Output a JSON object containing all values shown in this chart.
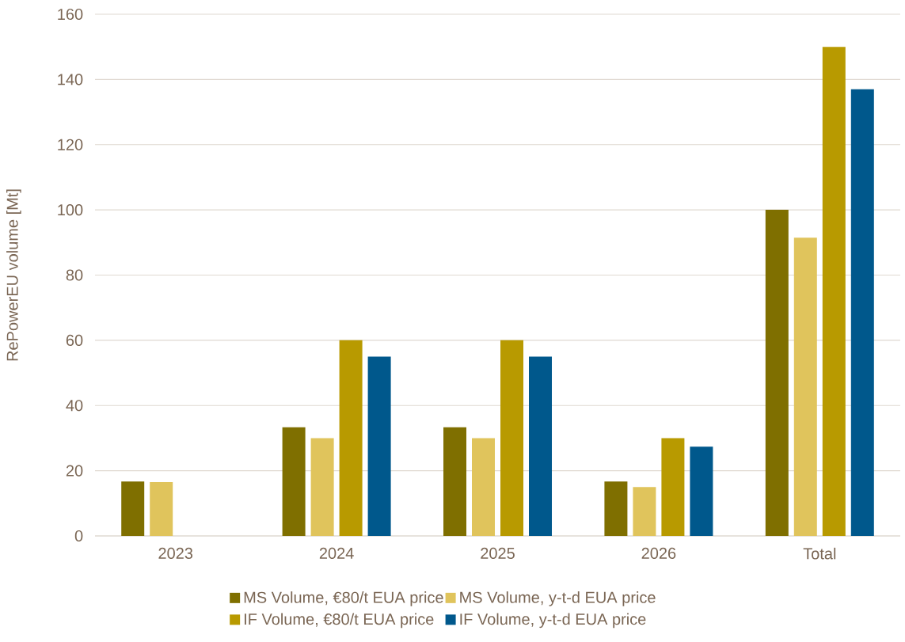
{
  "chart_data": {
    "type": "bar",
    "ylabel": "RePowerEU volume [Mt]",
    "categories": [
      "2023",
      "2024",
      "2025",
      "2026",
      "Total"
    ],
    "series": [
      {
        "name": "MS Volume, €80/t EUA price",
        "color": "#7f6f00",
        "values": [
          16.7,
          33.3,
          33.3,
          16.7,
          100
        ]
      },
      {
        "name": "MS Volume, y-t-d EUA price",
        "color": "#e0c45c",
        "values": [
          16.5,
          30,
          30,
          15,
          91.5
        ]
      },
      {
        "name": "IF Volume, €80/t EUA price",
        "color": "#b89a00",
        "values": [
          null,
          60,
          60,
          30,
          150
        ]
      },
      {
        "name": "IF Volume, y-t-d EUA price",
        "color": "#00588c",
        "values": [
          null,
          55,
          55,
          27.4,
          137
        ]
      }
    ],
    "ylim": [
      0,
      160
    ],
    "yticks": [
      0,
      20,
      40,
      60,
      80,
      100,
      120,
      140,
      160
    ],
    "grid": "y",
    "legend": "bottom"
  }
}
